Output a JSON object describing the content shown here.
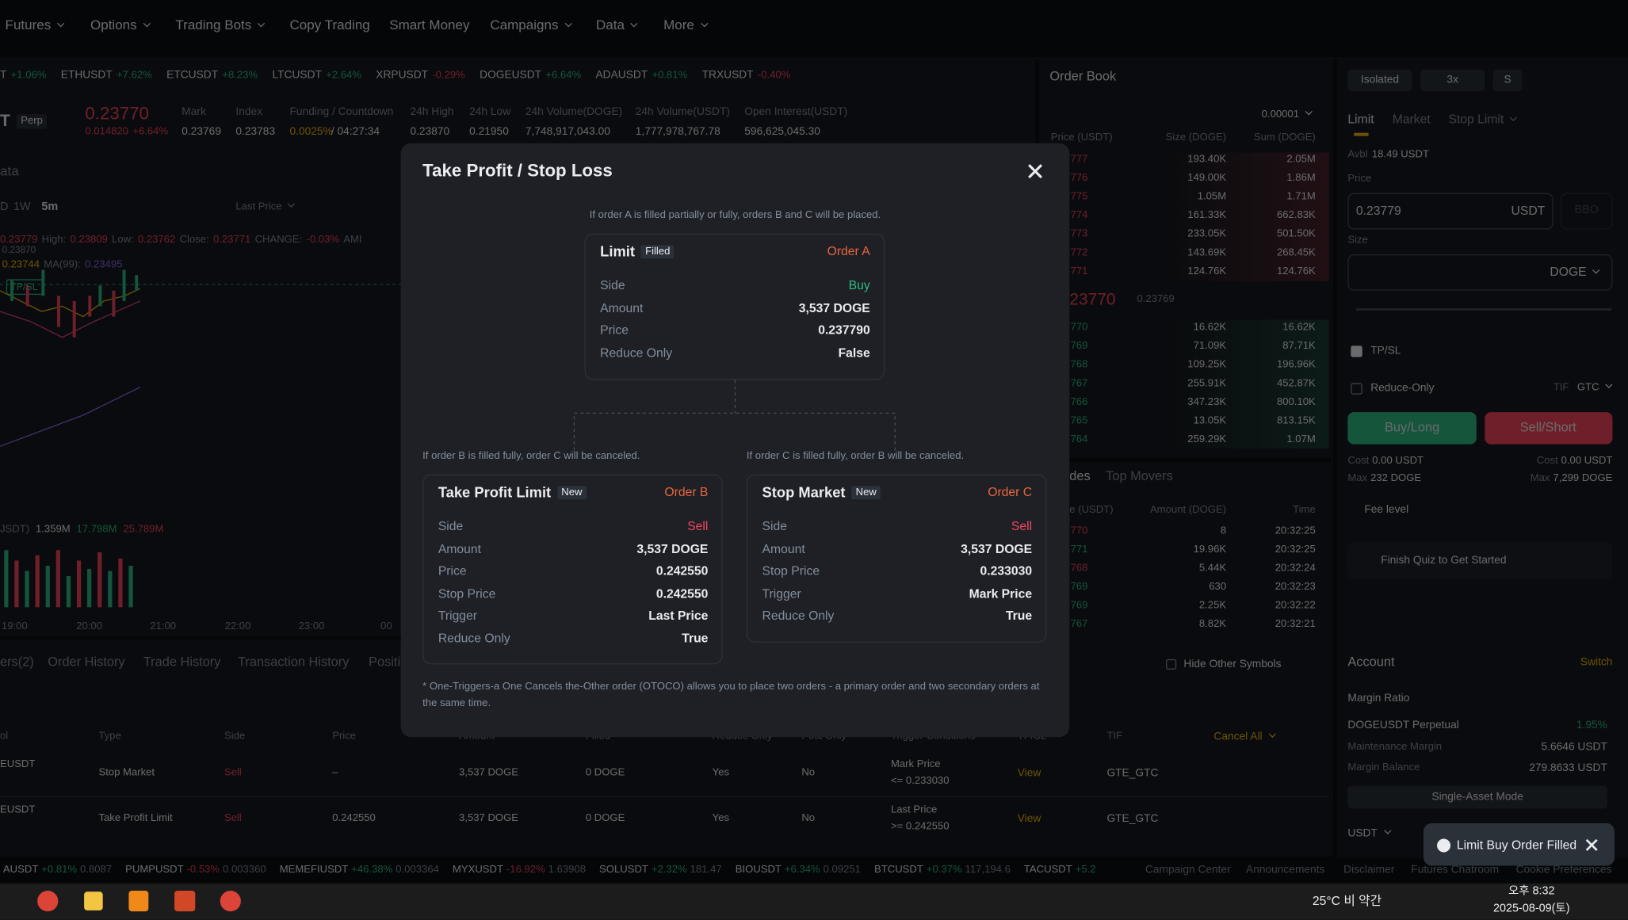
{
  "nav": [
    "Futures",
    "Options",
    "Trading Bots",
    "Copy Trading",
    "Smart Money",
    "Campaigns",
    "Data",
    "More"
  ],
  "tickers": [
    [
      "T",
      "+1.06%"
    ],
    [
      "ETHUSDT",
      "+7.62%"
    ],
    [
      "ETCUSDT",
      "+8.23%"
    ],
    [
      "LTCUSDT",
      "+2.64%"
    ],
    [
      "XRPUSDT",
      "-0.29%"
    ],
    [
      "DOGEUSDT",
      "+6.64%"
    ],
    [
      "ADAUSDT",
      "+0.81%"
    ],
    [
      "TRXUSDT",
      "-0.40%"
    ]
  ],
  "symbol": {
    "name": "T",
    "tag": "Perp",
    "price": "0.23770",
    "change": "0.014820",
    "change_pct": "+6.64%",
    "stats": [
      [
        "Mark",
        "0.23769"
      ],
      [
        "Index",
        "0.23783"
      ],
      [
        "Funding / Countdown",
        "0.0025%",
        "/ 04:27:34"
      ],
      [
        "24h High",
        "0.23870"
      ],
      [
        "24h Low",
        "0.21950"
      ],
      [
        "24h Volume(DOGE)",
        "7,748,917,043.00"
      ],
      [
        "24h Volume(USDT)",
        "1,777,978,767.78"
      ],
      [
        "Open Interest(USDT)",
        "596,625,045.30"
      ]
    ]
  },
  "chart": {
    "title": "ata",
    "intervals": [
      "D",
      "1W",
      "5m"
    ],
    "price_type": "Last Price",
    "ohlc": [
      "0.23779",
      "High:",
      "0.23809",
      "Low:",
      "0.23762",
      "Close:",
      "0.23771",
      "CHANGE:",
      "-0.03%",
      "AMI"
    ],
    "price_tag": "0.23870",
    "ma": [
      "0.23744",
      "MA(99):",
      "0.23495"
    ],
    "tpsl": "TP/SL",
    "vol": [
      "JSDT)",
      "1.359M",
      "17.798M",
      "25.789M"
    ],
    "times": [
      "19:00",
      "20:00",
      "21:00",
      "22:00",
      "23:00",
      "00"
    ]
  },
  "orders": {
    "tabs": [
      "ers(2)",
      "Order History",
      "Trade History",
      "Transaction History",
      "Positi"
    ],
    "hide": "Hide Other Symbols",
    "headers": [
      "ol",
      "Type",
      "Side",
      "Price",
      "Amount",
      "Filled",
      "Reduce Only",
      "Post Only",
      "Trigger Conditions",
      "TP/SL",
      "TIF"
    ],
    "cancel_all": "Cancel All",
    "rows": [
      [
        "EUSDT",
        "Stop Market",
        "Sell",
        "–",
        "3,537 DOGE",
        "0 DOGE",
        "Yes",
        "No",
        "Mark Price",
        "<= 0.233030",
        "View",
        "GTE_GTC"
      ],
      [
        "EUSDT",
        "Take Profit Limit",
        "Sell",
        "0.242550",
        "3,537 DOGE",
        "0 DOGE",
        "Yes",
        "No",
        "Last Price",
        ">= 0.242550",
        "View",
        "GTE_GTC"
      ]
    ]
  },
  "order_book": {
    "title": "Order Book",
    "tick": "0.00001",
    "headers": [
      "Price (USDT)",
      "Size (DOGE)",
      "Sum (DOGE)"
    ],
    "asks": [
      [
        "777",
        "193.40K",
        "2.05M"
      ],
      [
        "776",
        "149.00K",
        "1.86M"
      ],
      [
        "775",
        "1.05M",
        "1.71M"
      ],
      [
        "774",
        "161.33K",
        "662.83K"
      ],
      [
        "773",
        "233.05K",
        "501.50K"
      ],
      [
        "772",
        "143.69K",
        "268.45K"
      ],
      [
        "771",
        "124.76K",
        "124.76K"
      ]
    ],
    "last": "23770",
    "mark": "0.23769",
    "bids": [
      [
        "770",
        "16.62K",
        "16.62K"
      ],
      [
        "769",
        "71.09K",
        "87.71K"
      ],
      [
        "768",
        "109.25K",
        "196.96K"
      ],
      [
        "767",
        "255.91K",
        "452.87K"
      ],
      [
        "766",
        "347.23K",
        "800.10K"
      ],
      [
        "765",
        "13.05K",
        "813.15K"
      ],
      [
        "764",
        "259.29K",
        "1.07M"
      ]
    ]
  },
  "trades": {
    "tabs": [
      "des",
      "Top Movers"
    ],
    "headers": [
      "e (USDT)",
      "Amount (DOGE)",
      "Time"
    ],
    "rows": [
      [
        "770",
        "8",
        "20:32:25"
      ],
      [
        "771",
        "19.96K",
        "20:32:25"
      ],
      [
        "768",
        "5.44K",
        "20:32:24"
      ],
      [
        "769",
        "630",
        "20:32:23"
      ],
      [
        "769",
        "2.25K",
        "20:32:22"
      ],
      [
        "767",
        "8.82K",
        "20:32:21"
      ]
    ]
  },
  "panel": {
    "margin": [
      "Isolated",
      "3x",
      "S"
    ],
    "tabs": [
      "Limit",
      "Market",
      "Stop Limit"
    ],
    "avbl": "Avbl",
    "avbl_value": "18.49 USDT",
    "price_label": "Price",
    "price": "0.23779",
    "price_unit": "USDT",
    "bbo": "BBO",
    "size_label": "Size",
    "size_unit": "DOGE",
    "tpsl": "TP/SL",
    "reduce": "Reduce-Only",
    "tif": "TIF",
    "tif_value": "GTC",
    "buy": "Buy/Long",
    "sell": "Sell/Short",
    "cost": "Cost",
    "buy_cost": "0.00 USDT",
    "sell_cost": "0.00 USDT",
    "max": "Max",
    "buy_max": "232 DOGE",
    "sell_max": "7,299 DOGE",
    "fee": "Fee level",
    "quiz": "Finish Quiz to Get Started",
    "account": "Account",
    "switch": "Switch",
    "margin_ratio": "Margin Ratio",
    "contract": "DOGEUSDT Perpetual",
    "ratio": "1.95%",
    "maint": "Maintenance Margin",
    "maint_value": "5.6646 USDT",
    "balance": "Margin Balance",
    "balance_value": "279.8633 USDT",
    "mode": "Single-Asset Mode",
    "asset": "USDT"
  },
  "toast": "Limit Buy Order Filled",
  "modal": {
    "title": "Take Profit / Stop Loss",
    "note": "If order A is filled partially or fully, orders B and C will be placed.",
    "note_b": "If order B is filled fully, order C will be canceled.",
    "note_c": "If order C is filled fully, order B will be canceled.",
    "a": {
      "type": "Limit",
      "status": "Filled",
      "label": "Order A",
      "side_color": "#2ebd85",
      "rows": [
        [
          "Side",
          "Buy"
        ],
        [
          "Amount",
          "3,537 DOGE"
        ],
        [
          "Price",
          "0.237790"
        ],
        [
          "Reduce Only",
          "False"
        ]
      ]
    },
    "b": {
      "type": "Take Profit Limit",
      "status": "New",
      "label": "Order B",
      "side_color": "#f6465d",
      "rows": [
        [
          "Side",
          "Sell"
        ],
        [
          "Amount",
          "3,537 DOGE"
        ],
        [
          "Price",
          "0.242550"
        ],
        [
          "Stop Price",
          "0.242550"
        ],
        [
          "Trigger",
          "Last Price"
        ],
        [
          "Reduce Only",
          "True"
        ]
      ]
    },
    "c": {
      "type": "Stop Market",
      "status": "New",
      "label": "Order C",
      "side_color": "#f6465d",
      "rows": [
        [
          "Side",
          "Sell"
        ],
        [
          "Amount",
          "3,537 DOGE"
        ],
        [
          "Stop Price",
          "0.233030"
        ],
        [
          "Trigger",
          "Mark Price"
        ],
        [
          "Reduce Only",
          "True"
        ]
      ]
    },
    "footnote": "* One-Triggers-a One Cancels the-Other order (OTOCO) allows you to place two orders - a primary order and two secondary orders at the same time."
  },
  "footer": {
    "tickers": [
      [
        "AUSDT",
        "+0.81%",
        "0.8087"
      ],
      [
        "PUMPUSDT",
        "-0.53%",
        "0.003360"
      ],
      [
        "MEMEFIUSDT",
        "+46.38%",
        "0.003364"
      ],
      [
        "MYXUSDT",
        "-16.92%",
        "1.63908"
      ],
      [
        "SOLUSDT",
        "+2.32%",
        "181.47"
      ],
      [
        "BIOUSDT",
        "+6.34%",
        "0.09251"
      ],
      [
        "BTCUSDT",
        "+0.37%",
        "117,194.6"
      ],
      [
        "TACUSDT",
        "+5.2"
      ]
    ],
    "links": [
      "Campaign Center",
      "Announcements",
      "Disclaimer",
      "Futures Chatroom",
      "Cookie Preferences"
    ]
  },
  "taskbar": {
    "weather": "25°C 비 약간",
    "time": "오후 8:32",
    "date": "2025-08-09(토)"
  }
}
